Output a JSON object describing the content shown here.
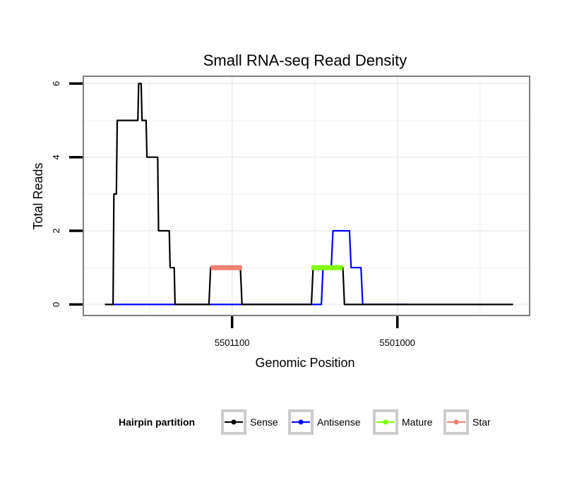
{
  "chart_data": {
    "type": "line",
    "title": "Small RNA-seq Read Density",
    "xlabel": "Genomic Position",
    "ylabel": "Total Reads",
    "x_reversed": true,
    "xlim": [
      5501190,
      5500920
    ],
    "ylim": [
      -0.3,
      6.2
    ],
    "x_ticks": [
      5501100,
      5501000
    ],
    "x_tick_labels": [
      "5501100",
      "5501000"
    ],
    "y_ticks": [
      0,
      2,
      4,
      6
    ],
    "y_tick_labels": [
      "0",
      "2",
      "4",
      "6"
    ],
    "grid": true,
    "legend": {
      "title": "Hairpin partition",
      "position": "bottom",
      "entries": [
        "Sense",
        "Antisense",
        "Mature",
        "Star"
      ]
    },
    "series": [
      {
        "name": "Sense",
        "color": "#000000",
        "x": [
          5501177,
          5501172,
          5501171.5,
          5501170,
          5501169.5,
          5501157,
          5501156.5,
          5501155,
          5501154.5,
          5501152,
          5501151.5,
          5501145,
          5501144.5,
          5501138,
          5501137.5,
          5501135,
          5501134.5,
          5501131,
          5501130.5,
          5501114,
          5501113,
          5501095,
          5501094,
          5501052,
          5501051,
          5501033,
          5501032,
          5500930
        ],
        "y": [
          0,
          0,
          3,
          3,
          5,
          5,
          6,
          6,
          5,
          5,
          4,
          4,
          2,
          2,
          1,
          1,
          0,
          0,
          0,
          0,
          1,
          1,
          0,
          0,
          1,
          1,
          0,
          0
        ]
      },
      {
        "name": "Antisense",
        "color": "#0000ff",
        "x": [
          5501172,
          5501094,
          5501093.5,
          5501046,
          5501045,
          5501040,
          5501039,
          5501029,
          5501028,
          5501022,
          5501021,
          5500993
        ],
        "y": [
          0,
          0,
          0,
          0,
          1,
          1,
          2,
          2,
          1,
          1,
          0,
          0
        ]
      },
      {
        "name": "Mature",
        "color": "#7fff00",
        "x": [
          5501052,
          5501033
        ],
        "y": [
          1,
          1
        ]
      },
      {
        "name": "Star",
        "color": "#f08070",
        "x": [
          5501113,
          5501094
        ],
        "y": [
          1,
          1
        ]
      }
    ]
  }
}
